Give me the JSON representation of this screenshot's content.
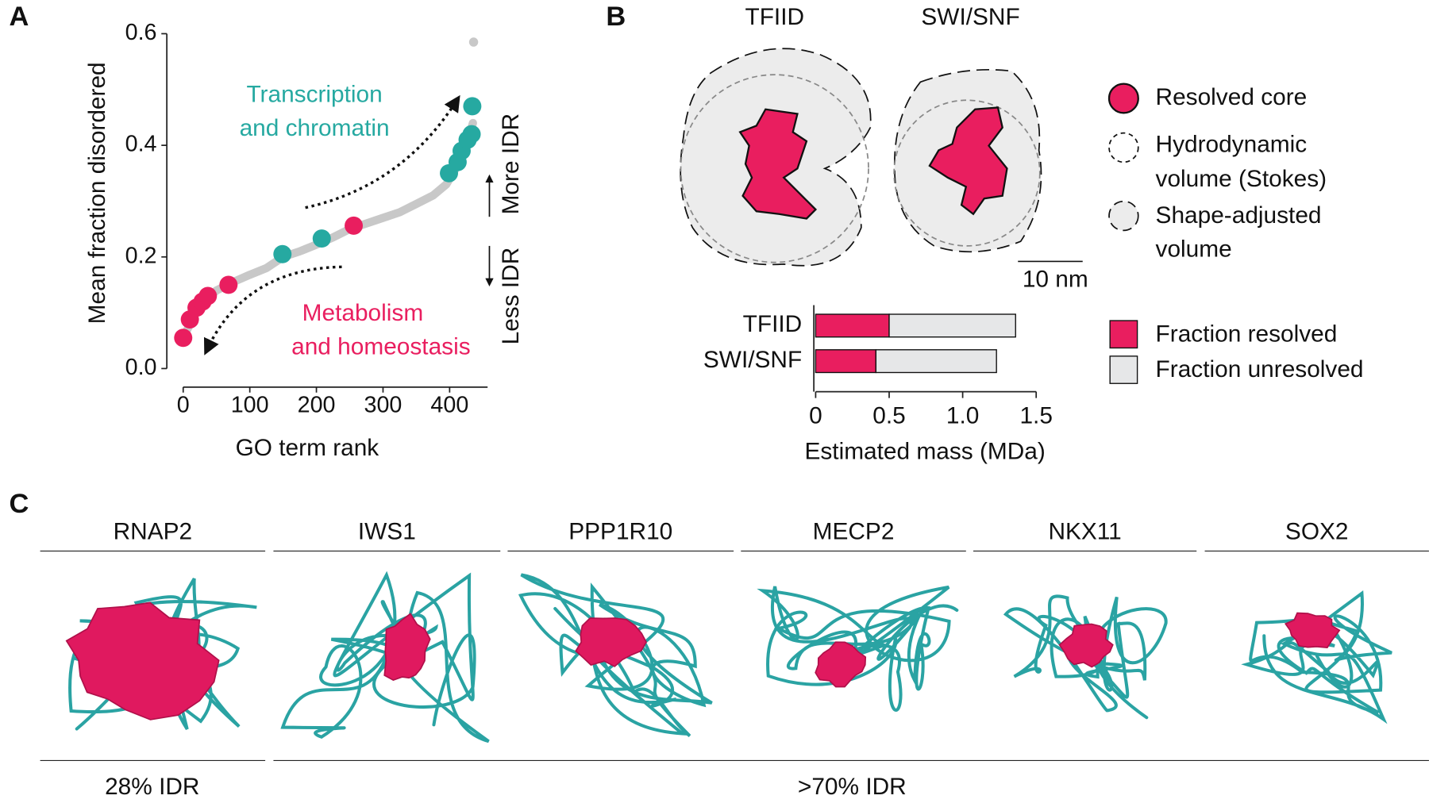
{
  "panels": [
    "A",
    "B",
    "C"
  ],
  "chart_data": [
    {
      "type": "scatter",
      "xlabel": "GO term rank",
      "ylabel": "Mean fraction disordered",
      "xlim": [
        -15,
        457
      ],
      "ylim": [
        -0.03,
        0.6
      ],
      "xticks": [
        0,
        100,
        200,
        300,
        400
      ],
      "yticks": [
        {
          "value": 0,
          "label": "0.0"
        },
        0.2,
        0.4,
        0.6
      ],
      "series": [
        {
          "color": "#c8c8c8",
          "style": "line",
          "x": [
            0,
            25,
            50,
            75,
            100,
            125,
            150,
            175,
            200,
            225,
            250,
            275,
            300,
            325,
            350,
            375,
            395,
            410,
            425,
            435
          ],
          "values": [
            0.055,
            0.115,
            0.14,
            0.155,
            0.168,
            0.18,
            0.2,
            0.21,
            0.222,
            0.235,
            0.25,
            0.26,
            0.27,
            0.28,
            0.295,
            0.31,
            0.33,
            0.36,
            0.4,
            0.44
          ]
        },
        {
          "color": "#c8c8c8",
          "style": "dots",
          "size": 5,
          "x": [
            436
          ],
          "values": [
            0.585
          ]
        },
        {
          "color": "#e91e5f",
          "style": "dots",
          "size": 10,
          "x": [
            0,
            10,
            20,
            29,
            37,
            68,
            256
          ],
          "values": [
            0.055,
            0.088,
            0.109,
            0.12,
            0.13,
            0.15,
            0.256
          ]
        },
        {
          "color": "#26a9a1",
          "style": "dots",
          "size": 10,
          "x": [
            149,
            208,
            399,
            412,
            418,
            427,
            433,
            434
          ],
          "values": [
            0.205,
            0.233,
            0.35,
            0.37,
            0.39,
            0.41,
            0.42,
            0.47
          ]
        }
      ],
      "annotations": {
        "top": [
          "Transcription",
          "and chromatin"
        ],
        "bottom": [
          "Metabolism",
          "and homeostasis"
        ],
        "more": "More IDR",
        "less": "Less IDR"
      }
    },
    {
      "type": "bar",
      "orientation": "horizontal",
      "stacked": true,
      "xlabel": "Estimated mass (MDa)",
      "categories": [
        "TFIID",
        "SWI/SNF"
      ],
      "xlim": [
        0,
        1.5
      ],
      "xticks": [
        0,
        0.5,
        {
          "value": 1,
          "label": "1.0"
        },
        1.5
      ],
      "series": [
        {
          "name": "Fraction resolved",
          "color": "#e91e5f",
          "values": [
            0.5,
            0.41
          ]
        },
        {
          "name": "Fraction unresolved",
          "color": "#e6e7e8",
          "values": [
            0.86,
            0.82
          ]
        }
      ]
    }
  ],
  "diagram": {
    "complexes": [
      "TFIID",
      "SWI/SNF"
    ],
    "legend": {
      "core": "Resolved core",
      "hydro": [
        "Hydrodynamic",
        "volume (Stokes)"
      ],
      "shape": [
        "Shape-adjusted",
        "volume"
      ]
    },
    "scale": "10 nm"
  },
  "structures": {
    "names": [
      "RNAP2",
      "IWS1",
      "PPP1R10",
      "MECP2",
      "NKX11",
      "SOX2"
    ],
    "groups": [
      "28% IDR",
      ">70% IDR"
    ]
  }
}
